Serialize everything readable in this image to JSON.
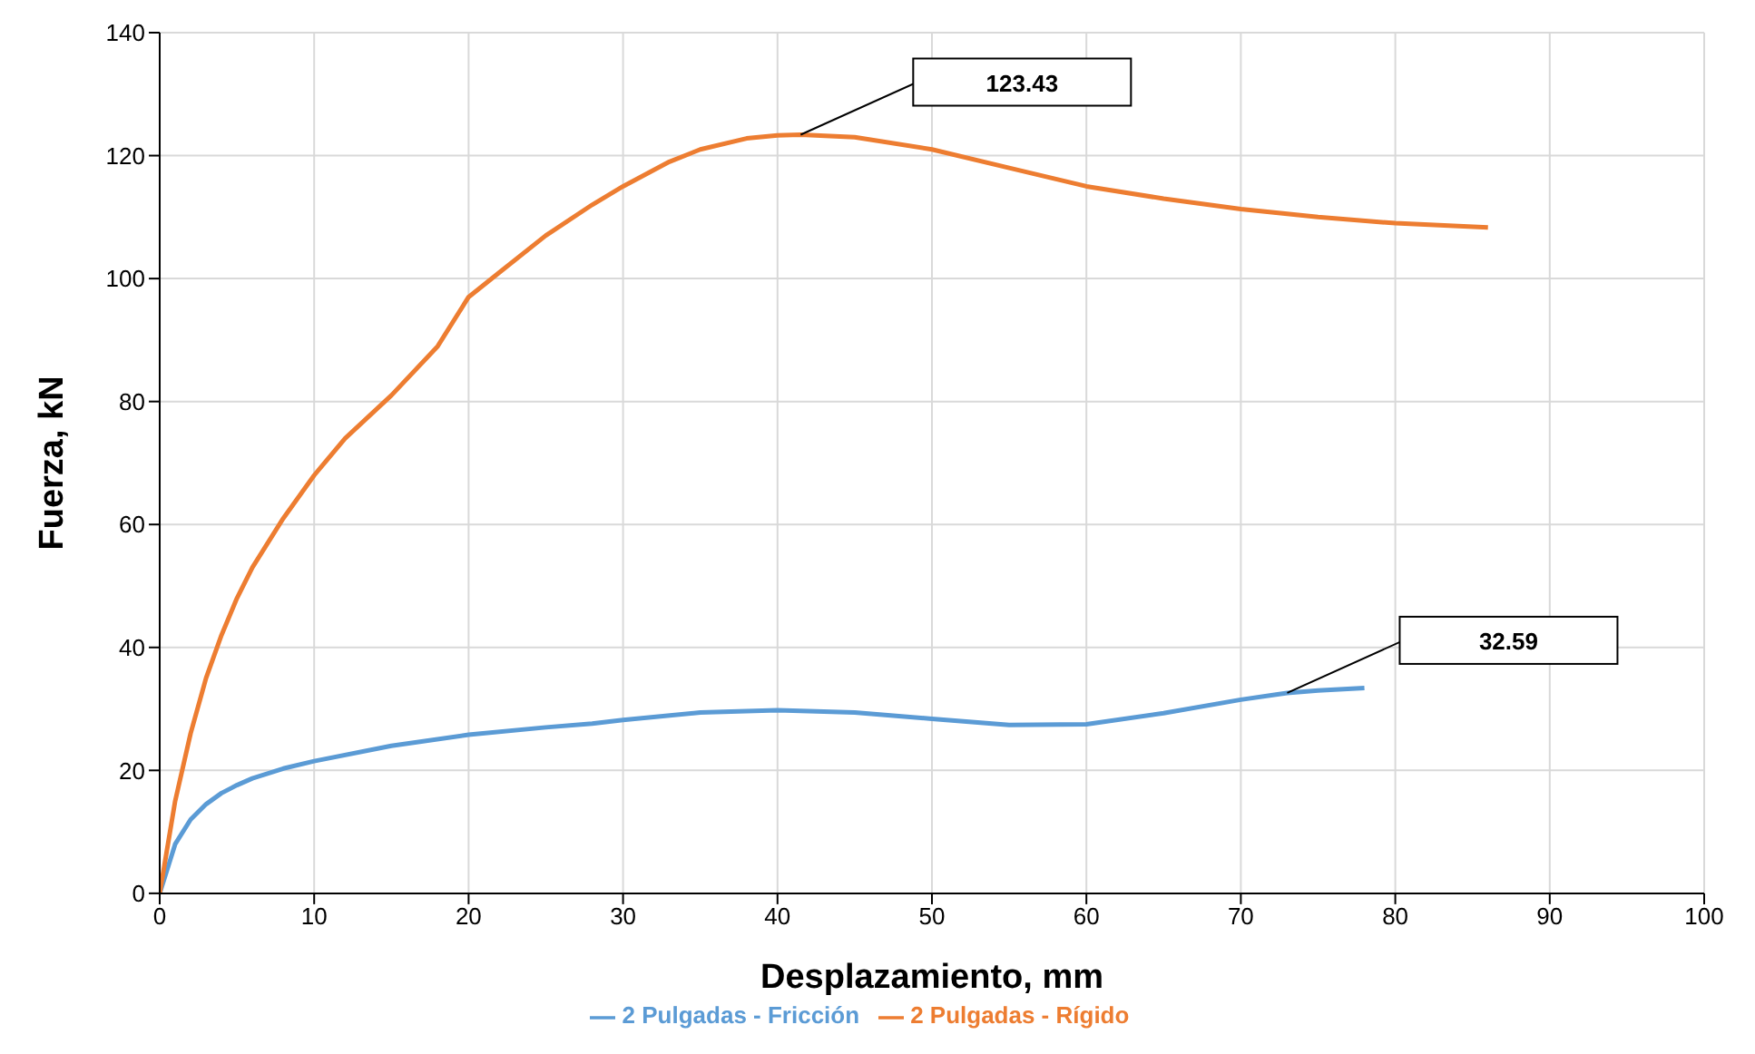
{
  "chart_data": {
    "type": "line",
    "xlabel": "Desplazamiento, mm",
    "ylabel": "Fuerza, kN",
    "xlim": [
      0,
      100
    ],
    "xticks": [
      0,
      10,
      20,
      30,
      40,
      50,
      60,
      70,
      80,
      90,
      100
    ],
    "ylim": [
      0,
      140
    ],
    "yticks": [
      0,
      20,
      40,
      60,
      80,
      100,
      120,
      140
    ],
    "grid": true,
    "legend": "bottom",
    "marker": "none",
    "line_style": "solid",
    "series": [
      {
        "name": "2 Pulgadas - Fricción",
        "color": "#5b9bd5",
        "x": [
          0,
          1,
          2,
          3,
          4,
          5,
          6,
          8,
          10,
          15,
          20,
          25,
          28,
          30,
          35,
          40,
          45,
          50,
          55,
          60,
          65,
          70,
          73,
          75,
          78
        ],
        "values": [
          0,
          8,
          12,
          14.5,
          16.3,
          17.6,
          18.7,
          20.3,
          21.5,
          24,
          25.8,
          27,
          27.6,
          28.2,
          29.4,
          29.8,
          29.4,
          28.4,
          27.4,
          27.5,
          29.3,
          31.5,
          32.6,
          33,
          33.4
        ]
      },
      {
        "name": "2 Pulgadas - Rígido",
        "color": "#ed7d31",
        "x": [
          0,
          1,
          2,
          3,
          4,
          5,
          6,
          8,
          10,
          12,
          15,
          18,
          20,
          22,
          25,
          28,
          30,
          33,
          35,
          38,
          40,
          41.5,
          45,
          50,
          55,
          60,
          65,
          70,
          75,
          80,
          86
        ],
        "values": [
          0,
          15,
          26,
          35,
          42,
          48,
          53,
          61,
          68,
          74,
          81,
          89,
          97,
          101,
          107,
          112,
          115,
          119,
          121,
          122.8,
          123.3,
          123.4,
          123,
          121,
          118,
          115,
          113,
          111.3,
          110,
          109,
          108.3
        ]
      }
    ],
    "annotations": [
      "32.59",
      "123.43"
    ]
  }
}
